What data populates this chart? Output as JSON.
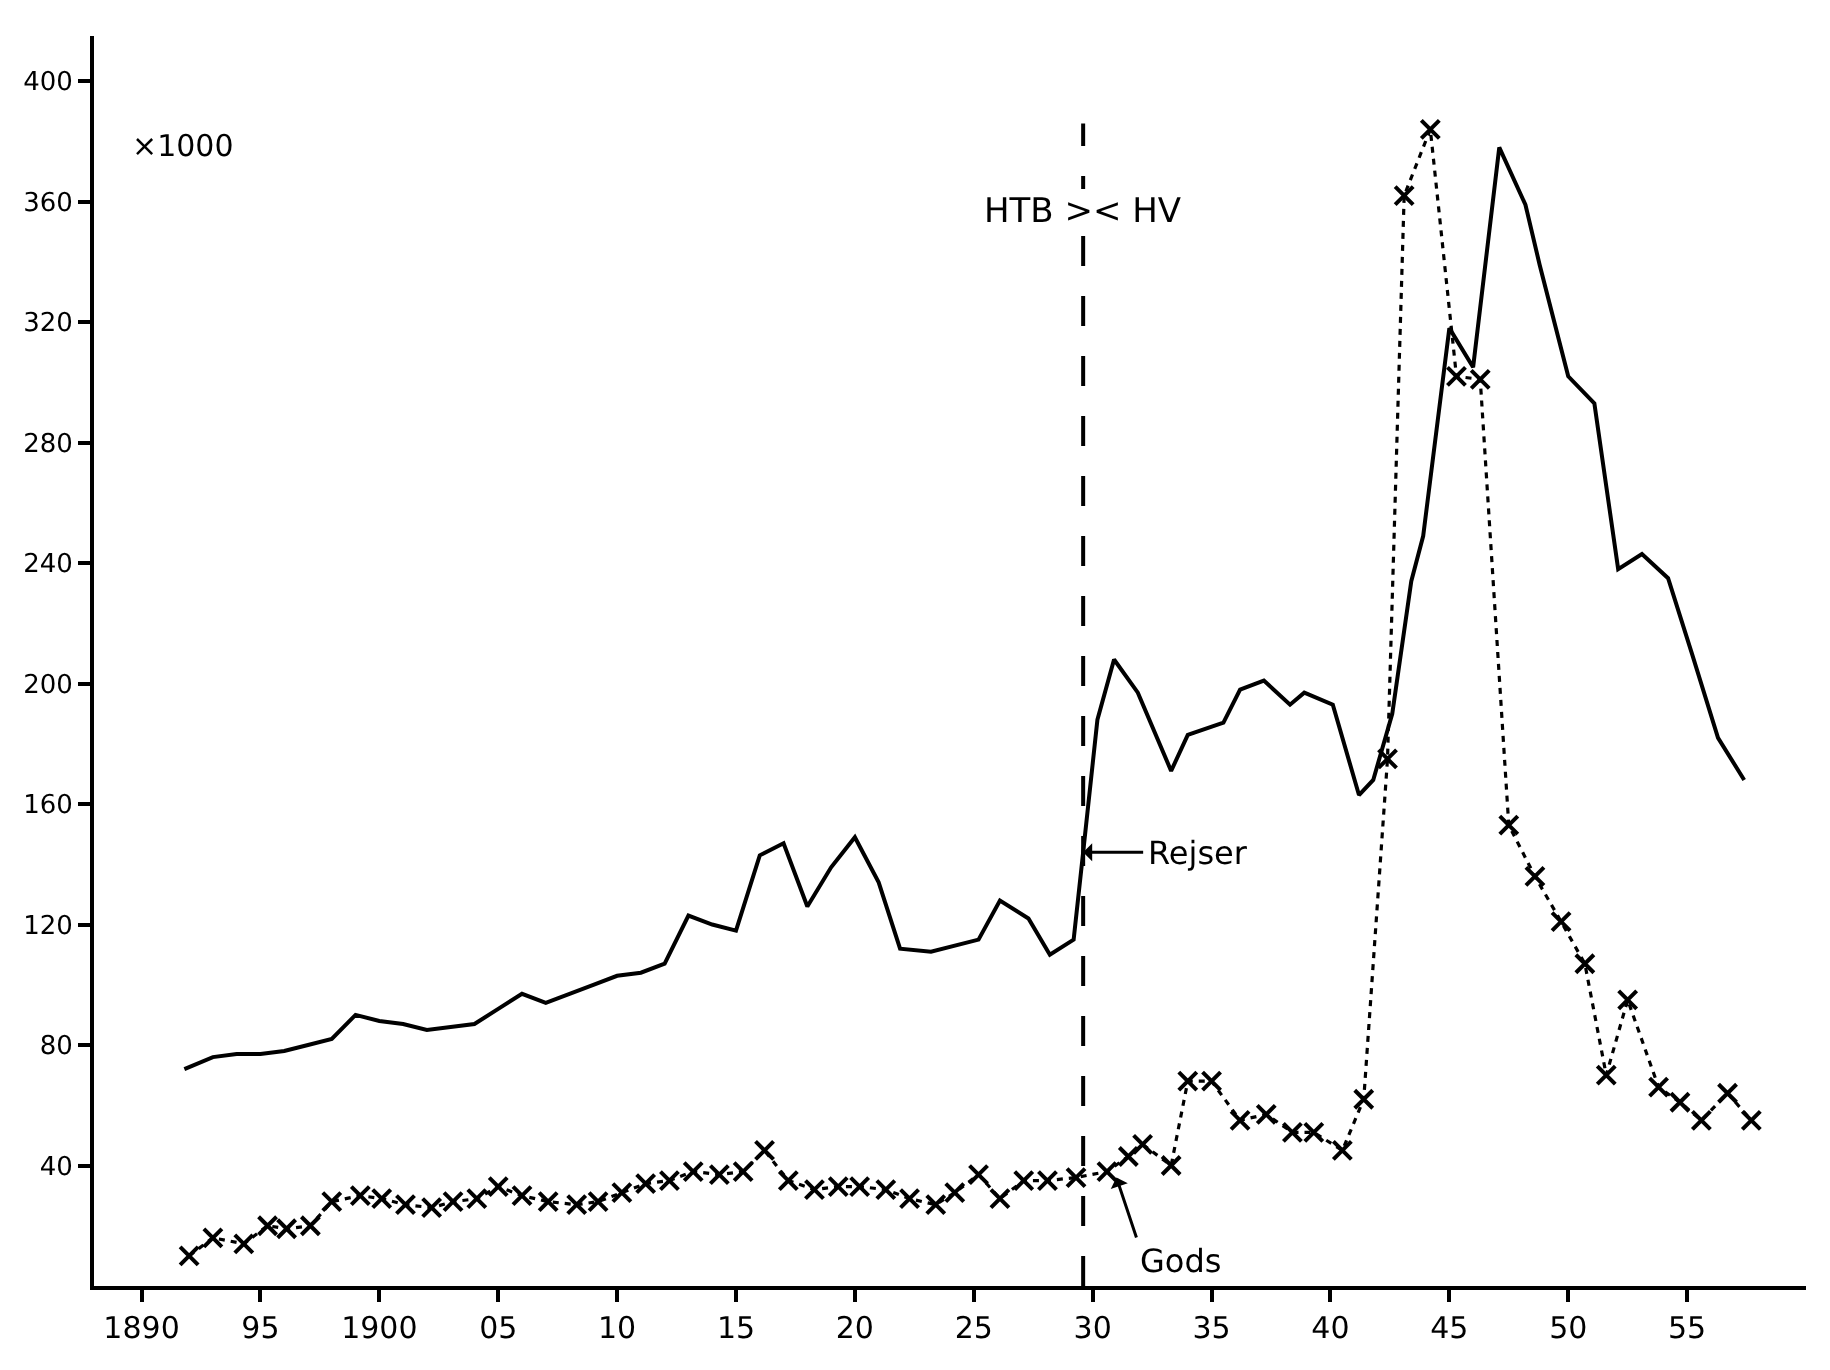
{
  "chart_data": {
    "type": "line",
    "ylabel": "×1000",
    "xlim": [
      1888,
      1960
    ],
    "ylim": [
      0,
      415
    ],
    "xticks": [
      {
        "value": 1890,
        "label": "1890"
      },
      {
        "value": 1895,
        "label": "95"
      },
      {
        "value": 1900,
        "label": "1900"
      },
      {
        "value": 1905,
        "label": "05"
      },
      {
        "value": 1910,
        "label": "10"
      },
      {
        "value": 1915,
        "label": "15"
      },
      {
        "value": 1920,
        "label": "20"
      },
      {
        "value": 1925,
        "label": "25"
      },
      {
        "value": 1930,
        "label": "30"
      },
      {
        "value": 1935,
        "label": "35"
      },
      {
        "value": 1940,
        "label": "40"
      },
      {
        "value": 1945,
        "label": "45"
      },
      {
        "value": 1950,
        "label": "50"
      },
      {
        "value": 1955,
        "label": "55"
      }
    ],
    "yticks": [
      40,
      80,
      120,
      160,
      200,
      240,
      280,
      320,
      360,
      400
    ],
    "series": [
      {
        "color": "#000000",
        "marker": "none",
        "line_style": "solid",
        "x": [
          1891.8,
          1893,
          1894,
          1895,
          1896,
          1897,
          1898,
          1899,
          1900,
          1901,
          1902,
          1903,
          1904,
          1905,
          1906,
          1907,
          1908,
          1909,
          1910,
          1911,
          1912,
          1913,
          1914,
          1915,
          1916,
          1917,
          1918,
          1919,
          1920,
          1921,
          1921.9,
          1923.2,
          1925.2,
          1926.1,
          1927.3,
          1928.2,
          1929.2,
          1929.6,
          1930.2,
          1930.9,
          1931.9,
          1933.3,
          1934,
          1935.5,
          1936.2,
          1937.2,
          1938.3,
          1938.9,
          1940.1,
          1941.2,
          1941.8,
          1942.6,
          1943.4,
          1943.9,
          1945,
          1946,
          1947.1,
          1948.2,
          1948.8,
          1950,
          1951.1,
          1952.1,
          1953.1,
          1954.2,
          1955.2,
          1956.3,
          1957.4
        ],
        "values": [
          72,
          76,
          77,
          77,
          78,
          80,
          82,
          90,
          88,
          87,
          85,
          86,
          87,
          92,
          97,
          94,
          97,
          100,
          103,
          104,
          107,
          123,
          120,
          118,
          143,
          147,
          126,
          139,
          149,
          134,
          112,
          111,
          115,
          128,
          122,
          110,
          115,
          144,
          188,
          208,
          197,
          171,
          183,
          187,
          198,
          201,
          193,
          197,
          193,
          163,
          168,
          190,
          234,
          249,
          318,
          305,
          378,
          359,
          339,
          302,
          293,
          238,
          243,
          235,
          210,
          182,
          168
        ]
      },
      {
        "color": "#000000",
        "marker": "cross",
        "line_style": "dotted",
        "x": [
          1892,
          1893,
          1894.3,
          1895.3,
          1896.1,
          1897.1,
          1898,
          1899.2,
          1900.1,
          1901.1,
          1902.2,
          1903.1,
          1904.1,
          1905,
          1906,
          1907.1,
          1908.3,
          1909.2,
          1910.2,
          1911.2,
          1912.2,
          1913.2,
          1914.3,
          1915.3,
          1916.2,
          1917.2,
          1918.3,
          1919.3,
          1920.2,
          1921.3,
          1922.3,
          1923.4,
          1924.2,
          1925.2,
          1926.1,
          1927.1,
          1928.1,
          1929.3,
          1930.6,
          1931.5,
          1932.1,
          1933.3,
          1934,
          1935,
          1936.2,
          1937.3,
          1938.4,
          1939.3,
          1940.5,
          1941.4,
          1942.4,
          1943.1,
          1944.2,
          1945.3,
          1946.3,
          1947.5,
          1948.6,
          1949.7,
          1950.7,
          1951.6,
          1952.5,
          1953.8,
          1954.7,
          1955.6,
          1956.7,
          1957.7
        ],
        "values": [
          10,
          16,
          14,
          20,
          19,
          20,
          28,
          30,
          29,
          27,
          26,
          28,
          29,
          33,
          30,
          28,
          27,
          28,
          31,
          34,
          35,
          38,
          37,
          38,
          45,
          35,
          32,
          33,
          33,
          32,
          29,
          27,
          31,
          37,
          29,
          35,
          35,
          36,
          38,
          43,
          47,
          40,
          68,
          68,
          55,
          57,
          51,
          51,
          45,
          62,
          175,
          362,
          384,
          302,
          301,
          153,
          136,
          121,
          107,
          70,
          95,
          66,
          61,
          55,
          64,
          55
        ]
      }
    ],
    "ref_lines": [
      {
        "axis": "x",
        "value": 1929.6,
        "label": "HTB >< HV",
        "line_style": "dashed",
        "color": "#000000"
      }
    ],
    "annotations": [
      {
        "text": "Rejser",
        "x": 1929.6,
        "y": 144
      },
      {
        "text": "Gods",
        "x": 1931,
        "y": 36
      }
    ]
  }
}
